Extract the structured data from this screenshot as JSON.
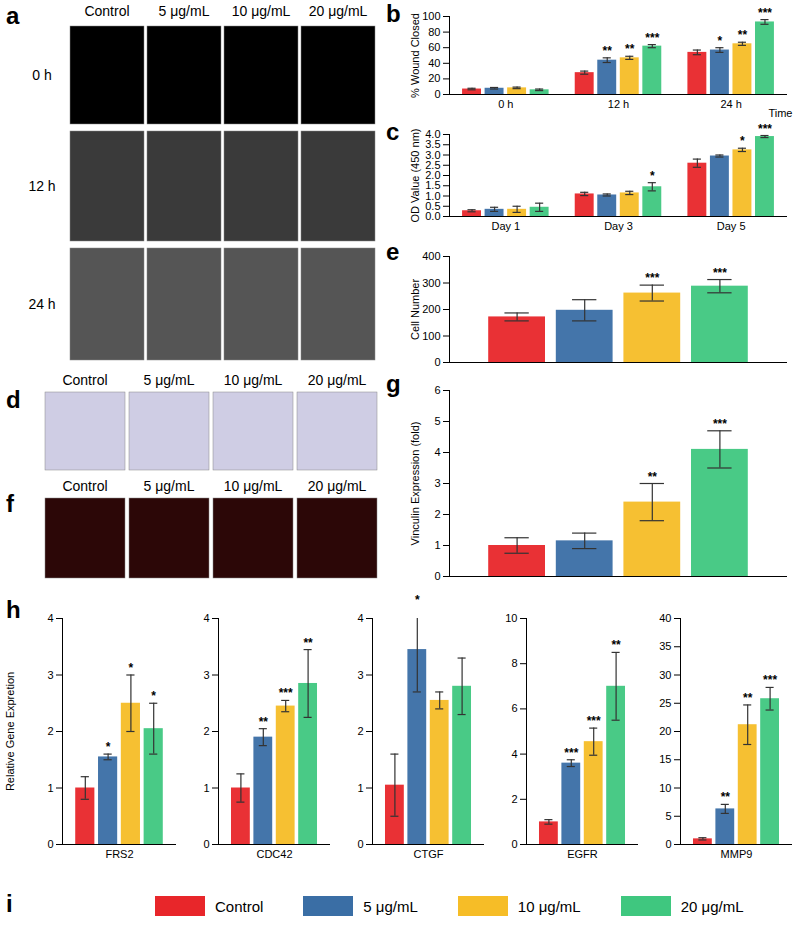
{
  "chart_data": [
    {
      "panel": "b",
      "type": "bar",
      "y_label": "% Wound Closed",
      "x_label": "Time",
      "categories": [
        "0 h",
        "12 h",
        "24 h"
      ],
      "ylim": [
        0,
        100
      ],
      "yticks": [
        0,
        20,
        40,
        60,
        80,
        100
      ],
      "series": [
        {
          "name": "Control",
          "color": "#e8262a",
          "values": [
            7,
            28,
            54
          ],
          "errors": [
            1,
            2,
            3
          ],
          "annotations": [
            null,
            null,
            null
          ]
        },
        {
          "name": "5 μg/mL",
          "color": "#3a6ea5",
          "values": [
            8,
            44,
            57
          ],
          "errors": [
            1,
            3,
            3
          ],
          "annotations": [
            null,
            "**",
            "*"
          ]
        },
        {
          "name": "10 μg/mL",
          "color": "#f6bd27",
          "values": [
            8.5,
            47,
            65
          ],
          "errors": [
            1,
            2,
            2
          ],
          "annotations": [
            null,
            "**",
            "**"
          ]
        },
        {
          "name": "20 μg/mL",
          "color": "#3fc77f",
          "values": [
            6,
            62,
            93
          ],
          "errors": [
            1,
            2,
            3
          ],
          "annotations": [
            null,
            "***",
            "***"
          ]
        }
      ]
    },
    {
      "panel": "c",
      "type": "bar",
      "y_label": "OD Value (450 nm)",
      "categories": [
        "Day 1",
        "Day 3",
        "Day 5"
      ],
      "ylim": [
        0,
        4
      ],
      "yticks": [
        {
          "value": 0,
          "label": "0.0"
        },
        0.5,
        {
          "value": 1,
          "label": "1.0"
        },
        1.5,
        {
          "value": 2,
          "label": "2.0"
        },
        2.5,
        {
          "value": 3,
          "label": "3.0"
        },
        3.5,
        {
          "value": 4,
          "label": "4.0"
        }
      ],
      "series": [
        {
          "name": "Control",
          "color": "#e8262a",
          "values": [
            0.28,
            1.1,
            2.6
          ],
          "errors": [
            0.05,
            0.08,
            0.2
          ],
          "annotations": [
            null,
            null,
            null
          ]
        },
        {
          "name": "5 μg/mL",
          "color": "#3a6ea5",
          "values": [
            0.35,
            1.05,
            2.95
          ],
          "errors": [
            0.1,
            0.05,
            0.05
          ],
          "annotations": [
            null,
            null,
            null
          ]
        },
        {
          "name": "10 μg/mL",
          "color": "#f6bd27",
          "values": [
            0.35,
            1.15,
            3.25
          ],
          "errors": [
            0.15,
            0.08,
            0.08
          ],
          "annotations": [
            null,
            null,
            "*"
          ]
        },
        {
          "name": "20 μg/mL",
          "color": "#3fc77f",
          "values": [
            0.45,
            1.45,
            3.9
          ],
          "errors": [
            0.2,
            0.2,
            0.05
          ],
          "annotations": [
            null,
            "*",
            "***"
          ]
        }
      ]
    },
    {
      "panel": "e",
      "type": "bar",
      "y_label": "Cell Number",
      "tick_labels": "y",
      "categories": [
        null
      ],
      "ylim": [
        0,
        400
      ],
      "yticks": [
        0,
        100,
        200,
        300,
        400
      ],
      "series": [
        {
          "name": "Control",
          "color": "#e8262a",
          "values": [
            172
          ],
          "errors": [
            15
          ],
          "annotations": [
            null
          ]
        },
        {
          "name": "5 μg/mL",
          "color": "#3a6ea5",
          "values": [
            197
          ],
          "errors": [
            40
          ],
          "annotations": [
            null
          ]
        },
        {
          "name": "10 μg/mL",
          "color": "#f6bd27",
          "values": [
            262
          ],
          "errors": [
            30
          ],
          "annotations": [
            "***"
          ]
        },
        {
          "name": "20 μg/mL",
          "color": "#3fc77f",
          "values": [
            288
          ],
          "errors": [
            25
          ],
          "annotations": [
            "***"
          ]
        }
      ]
    },
    {
      "panel": "g",
      "type": "bar",
      "y_label": "Vinculin Expression (fold)",
      "tick_labels": "y",
      "categories": [
        null
      ],
      "ylim": [
        0,
        6
      ],
      "yticks": [
        0,
        1,
        2,
        3,
        4,
        5,
        6
      ],
      "series": [
        {
          "name": "Control",
          "color": "#e8262a",
          "values": [
            1.0
          ],
          "errors": [
            0.25
          ],
          "annotations": [
            null
          ]
        },
        {
          "name": "5 μg/mL",
          "color": "#3a6ea5",
          "values": [
            1.15
          ],
          "errors": [
            0.25
          ],
          "annotations": [
            null
          ]
        },
        {
          "name": "10 μg/mL",
          "color": "#f6bd27",
          "values": [
            2.4
          ],
          "errors": [
            0.6
          ],
          "annotations": [
            "**"
          ]
        },
        {
          "name": "20 μg/mL",
          "color": "#3fc77f",
          "values": [
            4.1
          ],
          "errors": [
            0.6
          ],
          "annotations": [
            "***"
          ]
        }
      ]
    },
    {
      "panel": "h",
      "type": "bar",
      "y_label": "Relative Gene Expretion",
      "categories": [
        "FRS2"
      ],
      "ylim": [
        0,
        4
      ],
      "yticks": [
        0,
        1,
        2,
        3,
        4
      ],
      "series": [
        {
          "name": "Control",
          "color": "#e8262a",
          "values": [
            1.0
          ],
          "errors": [
            0.2
          ],
          "annotations": [
            null
          ]
        },
        {
          "name": "5 μg/mL",
          "color": "#3a6ea5",
          "values": [
            1.55
          ],
          "errors": [
            0.05
          ],
          "annotations": [
            "*"
          ]
        },
        {
          "name": "10 μg/mL",
          "color": "#f6bd27",
          "values": [
            2.5
          ],
          "errors": [
            0.5
          ],
          "annotations": [
            "*"
          ]
        },
        {
          "name": "20 μg/mL",
          "color": "#3fc77f",
          "values": [
            2.05
          ],
          "errors": [
            0.45
          ],
          "annotations": [
            "*"
          ]
        }
      ]
    },
    {
      "type": "bar",
      "categories": [
        "CDC42"
      ],
      "ylim": [
        0,
        4
      ],
      "yticks": [
        0,
        1,
        2,
        3,
        4
      ],
      "series": [
        {
          "name": "Control",
          "color": "#e8262a",
          "values": [
            1.0
          ],
          "errors": [
            0.25
          ],
          "annotations": [
            null
          ]
        },
        {
          "name": "5 μg/mL",
          "color": "#3a6ea5",
          "values": [
            1.9
          ],
          "errors": [
            0.15
          ],
          "annotations": [
            "**"
          ]
        },
        {
          "name": "10 μg/mL",
          "color": "#f6bd27",
          "values": [
            2.45
          ],
          "errors": [
            0.1
          ],
          "annotations": [
            "***"
          ]
        },
        {
          "name": "20 μg/mL",
          "color": "#3fc77f",
          "values": [
            2.85
          ],
          "errors": [
            0.6
          ],
          "annotations": [
            "**"
          ]
        }
      ]
    },
    {
      "type": "bar",
      "categories": [
        "CTGF"
      ],
      "ylim": [
        0,
        4
      ],
      "yticks": [
        0,
        1,
        2,
        3,
        4
      ],
      "series": [
        {
          "name": "Control",
          "color": "#e8262a",
          "values": [
            1.05
          ],
          "errors": [
            0.55
          ],
          "annotations": [
            null
          ]
        },
        {
          "name": "5 μg/mL",
          "color": "#3a6ea5",
          "values": [
            3.45
          ],
          "errors": [
            0.75
          ],
          "annotations": [
            "*"
          ]
        },
        {
          "name": "10 μg/mL",
          "color": "#f6bd27",
          "values": [
            2.55
          ],
          "errors": [
            0.15
          ],
          "annotations": [
            null
          ]
        },
        {
          "name": "20 μg/mL",
          "color": "#3fc77f",
          "values": [
            2.8
          ],
          "errors": [
            0.5
          ],
          "annotations": [
            null
          ]
        }
      ]
    },
    {
      "type": "bar",
      "categories": [
        "EGFR"
      ],
      "ylim": [
        0,
        10
      ],
      "yticks": [
        0,
        2,
        4,
        6,
        8,
        10
      ],
      "series": [
        {
          "name": "Control",
          "color": "#e8262a",
          "values": [
            1.0
          ],
          "errors": [
            0.1
          ],
          "annotations": [
            null
          ]
        },
        {
          "name": "5 μg/mL",
          "color": "#3a6ea5",
          "values": [
            3.6
          ],
          "errors": [
            0.15
          ],
          "annotations": [
            "***"
          ]
        },
        {
          "name": "10 μg/mL",
          "color": "#f6bd27",
          "values": [
            4.55
          ],
          "errors": [
            0.6
          ],
          "annotations": [
            "***"
          ]
        },
        {
          "name": "20 μg/mL",
          "color": "#3fc77f",
          "values": [
            7.0
          ],
          "errors": [
            1.5
          ],
          "annotations": [
            "**"
          ]
        }
      ]
    },
    {
      "type": "bar",
      "categories": [
        "MMP9"
      ],
      "ylim": [
        0,
        40
      ],
      "yticks": [
        0,
        5,
        10,
        15,
        20,
        25,
        30,
        35,
        40
      ],
      "series": [
        {
          "name": "Control",
          "color": "#e8262a",
          "values": [
            1.0
          ],
          "errors": [
            0.2
          ],
          "annotations": [
            null
          ]
        },
        {
          "name": "5 μg/mL",
          "color": "#3a6ea5",
          "values": [
            6.3
          ],
          "errors": [
            0.8
          ],
          "annotations": [
            "**"
          ]
        },
        {
          "name": "10 μg/mL",
          "color": "#f6bd27",
          "values": [
            21.2
          ],
          "errors": [
            3.5
          ],
          "annotations": [
            "**"
          ]
        },
        {
          "name": "20 μg/mL",
          "color": "#3fc77f",
          "values": [
            25.8
          ],
          "errors": [
            2
          ],
          "annotations": [
            "***"
          ]
        }
      ]
    }
  ],
  "figure": {
    "image_panels": [
      {
        "panel": "a",
        "columns": [
          "Control",
          "5 μg/mL",
          "10 μg/mL",
          "20 μg/mL"
        ],
        "rows": [
          "0 h",
          "12 h",
          "24 h"
        ]
      },
      {
        "panel": "d",
        "columns": [
          "Control",
          "5 μg/mL",
          "10 μg/mL",
          "20 μg/mL"
        ]
      },
      {
        "panel": "f",
        "columns": [
          "Control",
          "5 μg/mL",
          "10 μg/mL",
          "20 μg/mL"
        ]
      }
    ],
    "legend_panel": "i"
  }
}
